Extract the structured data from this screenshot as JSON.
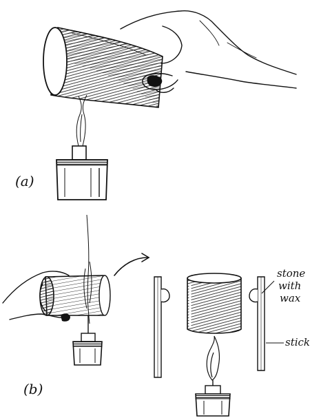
{
  "panels": {
    "a": {
      "label": "(a)"
    },
    "b": {
      "label": "(b)"
    }
  },
  "annotations": {
    "stone_line1": "stone",
    "stone_line2": "with",
    "stone_line3": "wax",
    "stick": "stick"
  },
  "colors": {
    "ink": "#111111",
    "paper": "#ffffff"
  }
}
